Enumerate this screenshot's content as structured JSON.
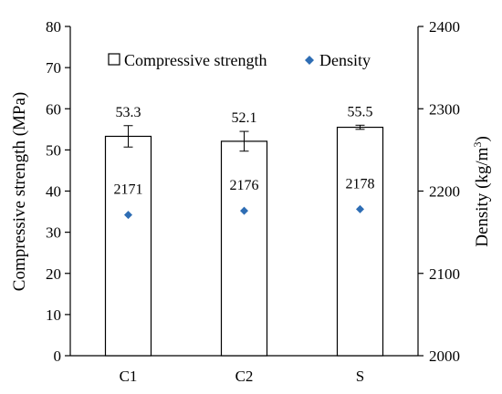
{
  "chart_data": {
    "type": "bar",
    "categories": [
      "C1",
      "C2",
      "S"
    ],
    "series": [
      {
        "name": "Compressive strength",
        "axis": "left",
        "mark": "bar",
        "values": [
          53.3,
          52.1,
          55.5
        ],
        "error": [
          2.6,
          2.4,
          0.5
        ],
        "labels": [
          "53.3",
          "52.1",
          "55.5"
        ]
      },
      {
        "name": "Density",
        "axis": "right",
        "mark": "diamond",
        "values": [
          2171,
          2176,
          2178
        ],
        "labels": [
          "2171",
          "2176",
          "2178"
        ]
      }
    ],
    "ylabel": "Compressive strength (MPa)",
    "y2label_main": "Density (kg/m",
    "y2label_sup": "3",
    "y2label_tail": ")",
    "ylim": [
      0,
      80
    ],
    "y2lim": [
      2000,
      2400
    ],
    "yticks": [
      "0",
      "10",
      "20",
      "30",
      "40",
      "50",
      "60",
      "70",
      "80"
    ],
    "y2ticks": [
      "2000",
      "2100",
      "2200",
      "2300",
      "2400"
    ],
    "legend_position": "top",
    "grid": false,
    "colors": {
      "bar_fill": "#ffffff",
      "bar_stroke": "#000000",
      "diamond": "#2e6db4"
    }
  }
}
